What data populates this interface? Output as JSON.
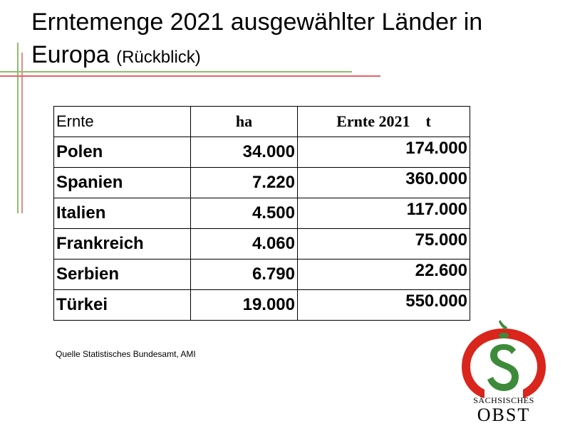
{
  "title": {
    "main": "Erntemenge 2021 ausgewählter Länder in",
    "line2": "Europa",
    "sub": "(Rückblick)"
  },
  "table": {
    "headers": [
      "Ernte",
      "ha",
      "Ernte 2021    t"
    ],
    "rows": [
      {
        "country": "Polen",
        "ha": "34.000",
        "ernte": "174.000"
      },
      {
        "country": "Spanien",
        "ha": "7.220",
        "ernte": "360.000"
      },
      {
        "country": "Italien",
        "ha": "4.500",
        "ernte": "117.000"
      },
      {
        "country": "Frankreich",
        "ha": "4.060",
        "ernte": "75.000"
      },
      {
        "country": "Serbien",
        "ha": "6.790",
        "ernte": "22.600"
      },
      {
        "country": "Türkei",
        "ha": "19.000",
        "ernte": "550.000"
      }
    ]
  },
  "source": "Quelle  Statistisches Bundesamt, AMI",
  "logo": {
    "line1": "SÄCHSISCHES",
    "line2": "OBST",
    "colors": {
      "red": "#d9251c",
      "green": "#3d8b3a"
    }
  },
  "accent_lines": {
    "green": "#8cbf6b",
    "red": "#e4646c"
  }
}
